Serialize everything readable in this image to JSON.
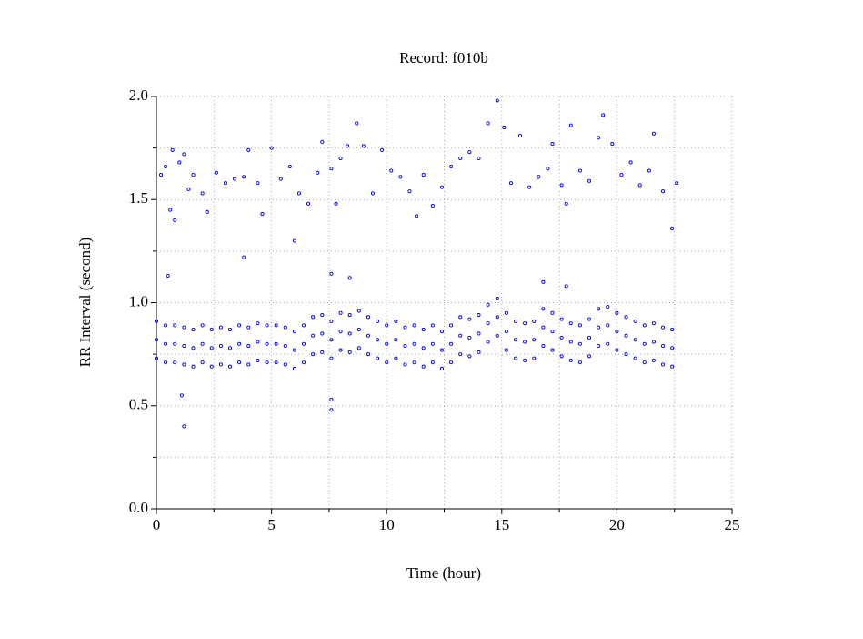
{
  "chart_data": {
    "type": "scatter",
    "title": "Record:  f010b",
    "x_label": "Time (hour)",
    "y_label": "RR Interval (second)",
    "color": "#0000ff",
    "grid": true,
    "xlim": [
      0,
      25
    ],
    "xticks": [
      0,
      5,
      10,
      15,
      20,
      25
    ],
    "xminorticks": [
      2.5,
      7.5,
      12.5,
      17.5,
      22.5
    ],
    "ylim": [
      0,
      2
    ],
    "yticks": [
      {
        "value": 0,
        "label": "0.0"
      },
      {
        "value": 0.5,
        "label": "0.5"
      },
      {
        "value": 1,
        "label": "1.0"
      },
      {
        "value": 1.5,
        "label": "1.5"
      },
      {
        "value": 2,
        "label": "2.0"
      }
    ],
    "yminorticks": [
      0.25,
      0.75,
      1.25,
      1.75
    ],
    "x": [
      0,
      0.4,
      0.8,
      1.2,
      1.6,
      2,
      2.4,
      2.8,
      3.2,
      3.6,
      4,
      4.4,
      4.8,
      5.2,
      5.6,
      6,
      6.4,
      6.8,
      7.2,
      7.6,
      8,
      8.4,
      8.8,
      9.2,
      9.6,
      10,
      10.4,
      10.8,
      11.2,
      11.6,
      12,
      12.4,
      12.8,
      13.2,
      13.6,
      14,
      14.4,
      14.8,
      15.2,
      15.6,
      16,
      16.4,
      16.8,
      17.2,
      17.6,
      18,
      18.4,
      18.8,
      19.2,
      19.6,
      20,
      20.4,
      20.8,
      21.2,
      21.6,
      22,
      22.4,
      0,
      0.4,
      0.8,
      1.2,
      1.6,
      2,
      2.4,
      2.8,
      3.2,
      3.6,
      4,
      4.4,
      4.8,
      5.2,
      5.6,
      6,
      6.4,
      6.8,
      7.2,
      7.6,
      8,
      8.4,
      8.8,
      9.2,
      9.6,
      10,
      10.4,
      10.8,
      11.2,
      11.6,
      12,
      12.4,
      12.8,
      13.2,
      13.6,
      14,
      14.4,
      14.8,
      15.2,
      15.6,
      16,
      16.4,
      16.8,
      17.2,
      17.6,
      18,
      18.4,
      18.8,
      19.2,
      19.6,
      20,
      20.4,
      20.8,
      21.2,
      21.6,
      22,
      22.4,
      0,
      0.4,
      0.8,
      1.2,
      1.6,
      2,
      2.4,
      2.8,
      3.2,
      3.6,
      4,
      4.4,
      4.8,
      5.2,
      5.6,
      6,
      6.4,
      6.8,
      7.2,
      7.6,
      8,
      8.4,
      8.8,
      9.2,
      9.6,
      10,
      10.4,
      10.8,
      11.2,
      11.6,
      12,
      12.4,
      12.8,
      13.2,
      13.6,
      14,
      14.4,
      14.8,
      15.2,
      15.6,
      16,
      16.4,
      16.8,
      17.2,
      17.6,
      18,
      18.4,
      18.8,
      19.2,
      19.6,
      20,
      20.4,
      20.8,
      21.2,
      21.6,
      22,
      22.4,
      0.2,
      0.4,
      0.6,
      0.7,
      0.8,
      1.0,
      1.2,
      1.4,
      1.6,
      2.0,
      2.2,
      2.6,
      3.0,
      3.4,
      3.8,
      4.0,
      4.4,
      4.6,
      5.0,
      5.4,
      5.8,
      6.0,
      6.2,
      6.6,
      7.0,
      7.2,
      7.6,
      7.8,
      8.0,
      8.3,
      8.7,
      9.0,
      9.4,
      9.8,
      10.2,
      10.6,
      11.0,
      11.3,
      11.6,
      12.0,
      12.4,
      12.8,
      13.2,
      13.6,
      14.0,
      14.4,
      14.8,
      15.1,
      15.4,
      15.8,
      16.2,
      16.6,
      17.0,
      17.2,
      17.6,
      17.8,
      18.0,
      18.4,
      18.8,
      19.2,
      19.4,
      19.8,
      20.2,
      20.6,
      21.0,
      21.4,
      21.6,
      22.0,
      22.4,
      22.6,
      3.8,
      0.5,
      1.1,
      1.2,
      7.6,
      7.6,
      7.6,
      8.4,
      16.8,
      17.8
    ],
    "values": [
      0.73,
      0.71,
      0.71,
      0.7,
      0.69,
      0.71,
      0.69,
      0.7,
      0.69,
      0.71,
      0.7,
      0.72,
      0.71,
      0.71,
      0.7,
      0.68,
      0.71,
      0.75,
      0.76,
      0.73,
      0.77,
      0.76,
      0.78,
      0.75,
      0.73,
      0.71,
      0.73,
      0.7,
      0.71,
      0.69,
      0.71,
      0.68,
      0.71,
      0.75,
      0.74,
      0.76,
      0.81,
      0.84,
      0.77,
      0.73,
      0.72,
      0.73,
      0.79,
      0.77,
      0.74,
      0.72,
      0.71,
      0.74,
      0.79,
      0.8,
      0.77,
      0.75,
      0.73,
      0.71,
      0.72,
      0.7,
      0.69,
      0.82,
      0.8,
      0.8,
      0.79,
      0.78,
      0.8,
      0.78,
      0.79,
      0.78,
      0.8,
      0.79,
      0.81,
      0.8,
      0.8,
      0.79,
      0.77,
      0.8,
      0.84,
      0.85,
      0.82,
      0.86,
      0.85,
      0.87,
      0.84,
      0.82,
      0.8,
      0.82,
      0.79,
      0.8,
      0.78,
      0.8,
      0.77,
      0.8,
      0.84,
      0.83,
      0.85,
      0.9,
      0.93,
      0.86,
      0.82,
      0.81,
      0.82,
      0.88,
      0.86,
      0.83,
      0.81,
      0.8,
      0.83,
      0.88,
      0.89,
      0.86,
      0.84,
      0.82,
      0.8,
      0.81,
      0.79,
      0.78,
      0.91,
      0.89,
      0.89,
      0.88,
      0.87,
      0.89,
      0.87,
      0.88,
      0.87,
      0.89,
      0.88,
      0.9,
      0.89,
      0.89,
      0.88,
      0.86,
      0.89,
      0.93,
      0.94,
      0.91,
      0.95,
      0.94,
      0.96,
      0.93,
      0.91,
      0.89,
      0.91,
      0.88,
      0.89,
      0.87,
      0.89,
      0.86,
      0.89,
      0.93,
      0.92,
      0.94,
      0.99,
      1.02,
      0.95,
      0.91,
      0.9,
      0.91,
      0.97,
      0.95,
      0.92,
      0.9,
      0.89,
      0.92,
      0.97,
      0.98,
      0.95,
      0.93,
      0.91,
      0.89,
      0.9,
      0.88,
      0.87,
      1.62,
      1.66,
      1.45,
      1.74,
      1.4,
      1.68,
      1.72,
      1.55,
      1.62,
      1.53,
      1.44,
      1.63,
      1.58,
      1.6,
      1.61,
      1.74,
      1.58,
      1.43,
      1.75,
      1.6,
      1.66,
      1.3,
      1.53,
      1.48,
      1.63,
      1.78,
      1.65,
      1.48,
      1.7,
      1.76,
      1.87,
      1.76,
      1.53,
      1.74,
      1.64,
      1.61,
      1.54,
      1.42,
      1.62,
      1.47,
      1.56,
      1.66,
      1.7,
      1.73,
      1.7,
      1.87,
      1.98,
      1.85,
      1.58,
      1.81,
      1.56,
      1.61,
      1.65,
      1.77,
      1.57,
      1.48,
      1.86,
      1.64,
      1.59,
      1.8,
      1.91,
      1.77,
      1.62,
      1.68,
      1.57,
      1.64,
      1.82,
      1.54,
      1.36,
      1.58,
      1.22,
      1.13,
      0.55,
      0.4,
      0.53,
      0.48,
      1.14,
      1.12,
      1.1,
      1.08
    ]
  }
}
